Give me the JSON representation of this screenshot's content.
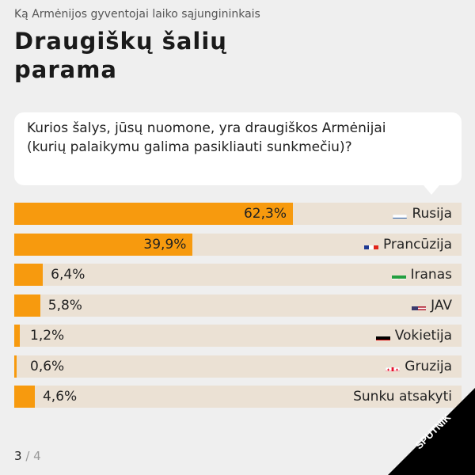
{
  "header": {
    "subtitle": "Ką Armėnijos gyventojai laiko sąjungininkais",
    "title": "Draugiškų šalių parama"
  },
  "question": "Kurios šalys, jūsų nuomone, yra draugiškos Armėnijai (kurių palaikymu galima pasikliauti sunkmečiu)?",
  "chart_data": {
    "type": "bar",
    "orientation": "horizontal",
    "xlim": [
      0,
      100
    ],
    "categories": [
      "Rusija",
      "Prancūzija",
      "Iranas",
      "JAV",
      "Vokietija",
      "Gruzija",
      "Sunku atsakyti"
    ],
    "values": [
      62.3,
      39.9,
      6.4,
      5.8,
      1.2,
      0.6,
      4.6
    ],
    "value_labels": [
      "62,3%",
      "39,9%",
      "6,4%",
      "5,8%",
      "1,2%",
      "0,6%",
      "4,6%"
    ],
    "flags": [
      "russia-flag-icon",
      "france-flag-icon",
      "iran-flag-icon",
      "usa-flag-icon",
      "germany-flag-icon",
      "georgia-flag-icon",
      ""
    ],
    "colors": {
      "bar": "#f79a0e",
      "track": "#ebe1d4"
    }
  },
  "brand": "SPUTNIK",
  "pager": {
    "current": "3",
    "total": "/ 4"
  }
}
